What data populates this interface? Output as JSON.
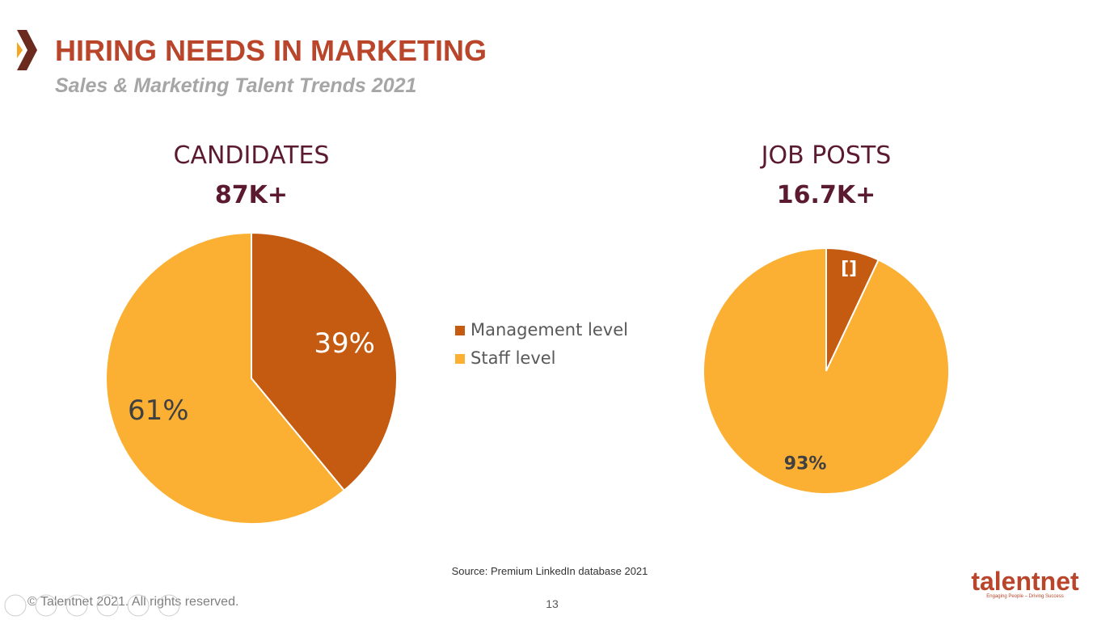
{
  "slide": {
    "title": "HIRING NEEDS IN MARKETING",
    "subtitle": "Sales & Marketing Talent Trends 2021",
    "source": "Source: Premium LinkedIn database 2021",
    "footer": "© Talentnet 2021. All rights reserved.",
    "page_number": "13",
    "logo": "talentnet",
    "tagline": "Engaging People – Driving Success"
  },
  "chart_data": [
    {
      "type": "pie",
      "title": "CANDIDATES",
      "subtitle": "87K+",
      "categories": [
        "Management level",
        "Staff level"
      ],
      "values": [
        39,
        61
      ],
      "value_labels": [
        "39%",
        "61%"
      ],
      "colors": [
        "#c55a11",
        "#fbb034"
      ]
    },
    {
      "type": "pie",
      "title": "JOB POSTS",
      "subtitle": "16.7K+",
      "values": [
        7,
        93
      ],
      "value_labels": [
        "[]",
        "93%"
      ],
      "colors": [
        "#c55a11",
        "#fbb034"
      ]
    }
  ]
}
